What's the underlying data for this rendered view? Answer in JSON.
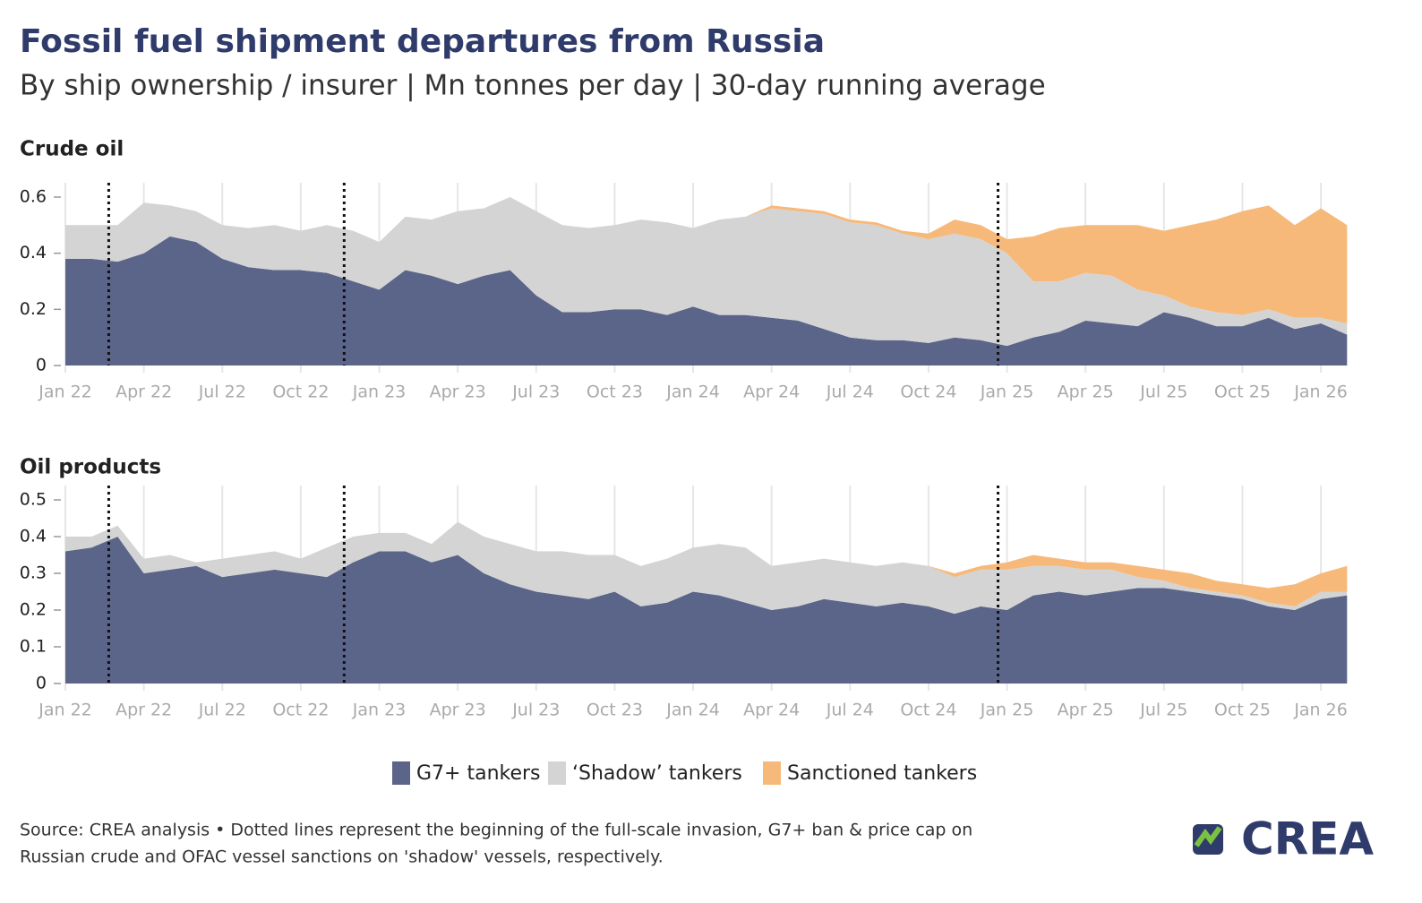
{
  "title": "Fossil fuel shipment departures from Russia",
  "subtitle": "By ship ownership / insurer | Mn tonnes per day | 30-day running average",
  "source": [
    "Source: CREA analysis • Dotted lines represent the beginning of the full-scale invasion, G7+ ban & price cap on",
    "Russian crude and OFAC vessel sanctions on 'shadow' vessels, respectively."
  ],
  "logo": "CREA",
  "chart_data": [
    {
      "type": "area",
      "stacked": true,
      "title": "Crude oil",
      "x": [
        "Jan 22",
        "Feb 22",
        "Mar 22",
        "Apr 22",
        "May 22",
        "Jun 22",
        "Jul 22",
        "Aug 22",
        "Sep 22",
        "Oct 22",
        "Nov 22",
        "Dec 22",
        "Jan 23",
        "Feb 23",
        "Mar 23",
        "Apr 23",
        "May 23",
        "Jun 23",
        "Jul 23",
        "Aug 23",
        "Sep 23",
        "Oct 23",
        "Nov 23",
        "Dec 23",
        "Jan 24",
        "Feb 24",
        "Mar 24",
        "Apr 24",
        "May 24",
        "Jun 24",
        "Jul 24",
        "Aug 24",
        "Sep 24",
        "Oct 24",
        "Nov 24",
        "Dec 24",
        "Jan 25",
        "Feb 25",
        "Mar 25",
        "Apr 25",
        "May 25",
        "Jun 25",
        "Jul 25",
        "Aug 25",
        "Sep 25",
        "Oct 25",
        "Nov 25",
        "Dec 25",
        "Jan 26",
        "Feb 26"
      ],
      "xticks": [
        "Jan 22",
        "Apr 22",
        "Jul 22",
        "Oct 22",
        "Jan 23",
        "Apr 23",
        "Jul 23",
        "Oct 23",
        "Jan 24",
        "Apr 24",
        "Jul 24",
        "Oct 24",
        "Jan 25",
        "Apr 25",
        "Jul 25",
        "Oct 25",
        "Jan 26"
      ],
      "vlines": [
        "Mar 22",
        "Dec 22",
        "Jan 25"
      ],
      "ylim": [
        0,
        0.6
      ],
      "yticks": [
        0,
        0.2,
        0.4,
        0.6
      ],
      "grid": "x",
      "series": [
        {
          "name": "G7+ tankers",
          "color": "#5b6589",
          "values": [
            0.38,
            0.38,
            0.37,
            0.4,
            0.46,
            0.44,
            0.38,
            0.35,
            0.34,
            0.34,
            0.33,
            0.3,
            0.27,
            0.34,
            0.32,
            0.29,
            0.32,
            0.34,
            0.25,
            0.19,
            0.19,
            0.2,
            0.2,
            0.18,
            0.21,
            0.18,
            0.18,
            0.17,
            0.16,
            0.13,
            0.1,
            0.09,
            0.09,
            0.08,
            0.1,
            0.09,
            0.07,
            0.1,
            0.12,
            0.16,
            0.15,
            0.14,
            0.19,
            0.17,
            0.14,
            0.14,
            0.17,
            0.13,
            0.15,
            0.11
          ]
        },
        {
          "name": "‘Shadow’ tankers",
          "color": "#d4d4d4",
          "values": [
            0.12,
            0.12,
            0.13,
            0.18,
            0.11,
            0.11,
            0.12,
            0.14,
            0.16,
            0.14,
            0.17,
            0.18,
            0.17,
            0.19,
            0.2,
            0.26,
            0.24,
            0.26,
            0.3,
            0.31,
            0.3,
            0.3,
            0.32,
            0.33,
            0.28,
            0.34,
            0.35,
            0.39,
            0.39,
            0.41,
            0.41,
            0.41,
            0.38,
            0.37,
            0.37,
            0.36,
            0.33,
            0.2,
            0.18,
            0.17,
            0.17,
            0.13,
            0.06,
            0.04,
            0.05,
            0.04,
            0.03,
            0.04,
            0.02,
            0.04
          ]
        },
        {
          "name": "Sanctioned tankers",
          "color": "#f7b97a",
          "values": [
            0,
            0,
            0,
            0,
            0,
            0,
            0,
            0,
            0,
            0,
            0,
            0,
            0,
            0,
            0,
            0,
            0,
            0,
            0,
            0,
            0,
            0,
            0,
            0,
            0,
            0,
            0,
            0.01,
            0.01,
            0.01,
            0.01,
            0.01,
            0.01,
            0.02,
            0.05,
            0.05,
            0.05,
            0.16,
            0.19,
            0.17,
            0.18,
            0.23,
            0.23,
            0.29,
            0.33,
            0.37,
            0.37,
            0.33,
            0.39,
            0.35
          ]
        }
      ]
    },
    {
      "type": "area",
      "stacked": true,
      "title": "Oil products",
      "x": [
        "Jan 22",
        "Feb 22",
        "Mar 22",
        "Apr 22",
        "May 22",
        "Jun 22",
        "Jul 22",
        "Aug 22",
        "Sep 22",
        "Oct 22",
        "Nov 22",
        "Dec 22",
        "Jan 23",
        "Feb 23",
        "Mar 23",
        "Apr 23",
        "May 23",
        "Jun 23",
        "Jul 23",
        "Aug 23",
        "Sep 23",
        "Oct 23",
        "Nov 23",
        "Dec 23",
        "Jan 24",
        "Feb 24",
        "Mar 24",
        "Apr 24",
        "May 24",
        "Jun 24",
        "Jul 24",
        "Aug 24",
        "Sep 24",
        "Oct 24",
        "Nov 24",
        "Dec 24",
        "Jan 25",
        "Feb 25",
        "Mar 25",
        "Apr 25",
        "May 25",
        "Jun 25",
        "Jul 25",
        "Aug 25",
        "Sep 25",
        "Oct 25",
        "Nov 25",
        "Dec 25",
        "Jan 26",
        "Feb 26"
      ],
      "xticks": [
        "Jan 22",
        "Apr 22",
        "Jul 22",
        "Oct 22",
        "Jan 23",
        "Apr 23",
        "Jul 23",
        "Oct 23",
        "Jan 24",
        "Apr 24",
        "Jul 24",
        "Oct 24",
        "Jan 25",
        "Apr 25",
        "Jul 25",
        "Oct 25",
        "Jan 26"
      ],
      "vlines": [
        "Mar 22",
        "Dec 22",
        "Jan 25"
      ],
      "ylim": [
        0,
        0.5
      ],
      "yticks": [
        0,
        0.1,
        0.2,
        0.3,
        0.4,
        0.5
      ],
      "grid": "x",
      "series": [
        {
          "name": "G7+ tankers",
          "color": "#5b6589",
          "values": [
            0.36,
            0.37,
            0.4,
            0.3,
            0.31,
            0.32,
            0.29,
            0.3,
            0.31,
            0.3,
            0.29,
            0.33,
            0.36,
            0.36,
            0.33,
            0.35,
            0.3,
            0.27,
            0.25,
            0.24,
            0.23,
            0.25,
            0.21,
            0.22,
            0.25,
            0.24,
            0.22,
            0.2,
            0.21,
            0.23,
            0.22,
            0.21,
            0.22,
            0.21,
            0.19,
            0.21,
            0.2,
            0.24,
            0.25,
            0.24,
            0.25,
            0.26,
            0.26,
            0.25,
            0.24,
            0.23,
            0.21,
            0.2,
            0.23,
            0.24
          ]
        },
        {
          "name": "‘Shadow’ tankers",
          "color": "#d4d4d4",
          "values": [
            0.04,
            0.03,
            0.03,
            0.04,
            0.04,
            0.01,
            0.05,
            0.05,
            0.05,
            0.04,
            0.08,
            0.07,
            0.05,
            0.05,
            0.05,
            0.09,
            0.1,
            0.11,
            0.11,
            0.12,
            0.12,
            0.1,
            0.11,
            0.12,
            0.12,
            0.14,
            0.15,
            0.12,
            0.12,
            0.11,
            0.11,
            0.11,
            0.11,
            0.11,
            0.1,
            0.1,
            0.11,
            0.08,
            0.07,
            0.07,
            0.06,
            0.03,
            0.02,
            0.01,
            0.01,
            0.01,
            0.01,
            0.01,
            0.02,
            0.01
          ]
        },
        {
          "name": "Sanctioned tankers",
          "color": "#f7b97a",
          "values": [
            0,
            0,
            0,
            0,
            0,
            0,
            0,
            0,
            0,
            0,
            0,
            0,
            0,
            0,
            0,
            0,
            0,
            0,
            0,
            0,
            0,
            0,
            0,
            0,
            0,
            0,
            0,
            0,
            0,
            0,
            0,
            0,
            0,
            0,
            0.01,
            0.01,
            0.02,
            0.03,
            0.02,
            0.02,
            0.02,
            0.03,
            0.03,
            0.04,
            0.03,
            0.03,
            0.04,
            0.06,
            0.05,
            0.07
          ]
        }
      ]
    }
  ]
}
